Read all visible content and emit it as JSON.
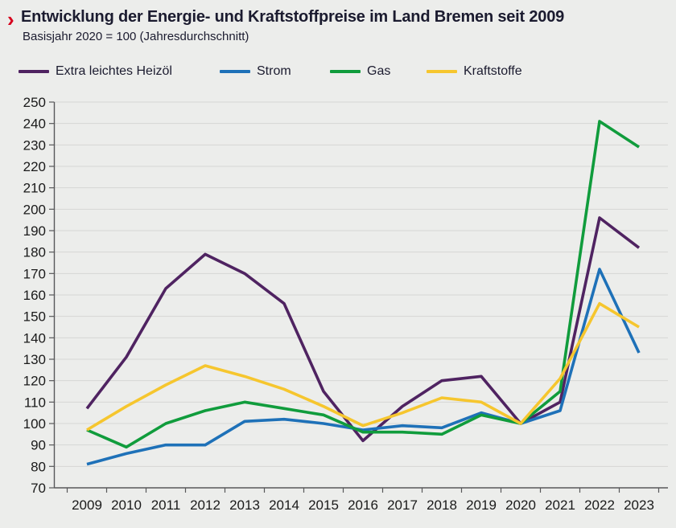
{
  "header": {
    "marker": "›",
    "title": "Entwicklung der Energie- und Kraftstoffpreise im Land Bremen seit 2009",
    "subtitle": "Basisjahr 2020 = 100 (Jahresdurchschnitt)"
  },
  "colors": {
    "accent_red": "#d6001c",
    "heizoel": "#4f2361",
    "strom": "#1e71b8",
    "gas": "#109c3c",
    "kraftstoffe": "#f6c62e",
    "grid": "#d6d6d4",
    "axis": "#58585a",
    "text": "#1a1a1a",
    "background": "#ecedeb"
  },
  "chart_data": {
    "type": "line",
    "x": [
      2009,
      2010,
      2011,
      2012,
      2013,
      2014,
      2015,
      2016,
      2017,
      2018,
      2019,
      2020,
      2021,
      2022,
      2023
    ],
    "series": [
      {
        "name": "Extra leichtes Heizöl",
        "color_key": "heizoel",
        "values": [
          107,
          131,
          163,
          179,
          170,
          156,
          115,
          92,
          108,
          120,
          122,
          100,
          110,
          196,
          182
        ]
      },
      {
        "name": "Strom",
        "color_key": "strom",
        "values": [
          81,
          86,
          90,
          90,
          101,
          102,
          100,
          97,
          99,
          98,
          105,
          100,
          106,
          172,
          133
        ]
      },
      {
        "name": "Gas",
        "color_key": "gas",
        "values": [
          97,
          89,
          100,
          106,
          110,
          107,
          104,
          96,
          96,
          95,
          104,
          100,
          115,
          241,
          229
        ]
      },
      {
        "name": "Kraftstoffe",
        "color_key": "kraftstoffe",
        "values": [
          97,
          108,
          118,
          127,
          122,
          116,
          108,
          99,
          105,
          112,
          110,
          100,
          121,
          156,
          145
        ]
      }
    ],
    "title": "Entwicklung der Energie- und Kraftstoffpreise im Land Bremen seit 2009",
    "subtitle": "Basisjahr 2020 = 100 (Jahresdurchschnitt)",
    "xlabel": "",
    "ylabel": "",
    "ylim": [
      70,
      250
    ],
    "ytick_step": 10,
    "grid": true,
    "legend_position": "top"
  }
}
